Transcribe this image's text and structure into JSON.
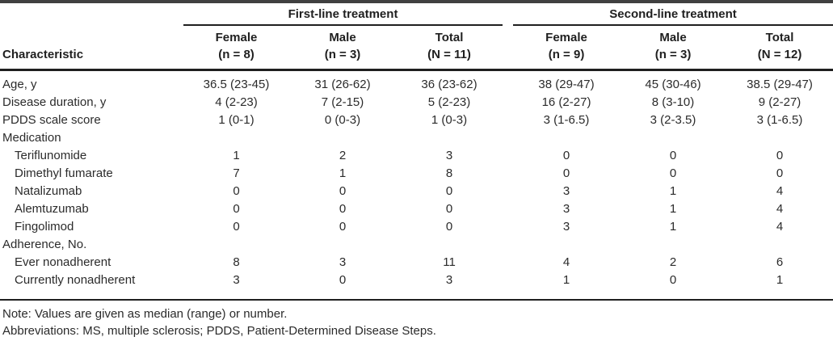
{
  "colors": {
    "background": "#ffffff",
    "text": "#2b2b2b",
    "rule": "#1f1f1f"
  },
  "table": {
    "characteristic_header": "Characteristic",
    "groups": [
      {
        "label": "First-line treatment"
      },
      {
        "label": "Second-line treatment"
      }
    ],
    "columns": [
      {
        "line1": "Female",
        "line2": "(n = 8)"
      },
      {
        "line1": "Male",
        "line2": "(n = 3)"
      },
      {
        "line1": "Total",
        "line2": "(N = 11)"
      },
      {
        "line1": "Female",
        "line2": "(n = 9)"
      },
      {
        "line1": "Male",
        "line2": "(n = 3)"
      },
      {
        "line1": "Total",
        "line2": "(N = 12)"
      }
    ],
    "rows": [
      {
        "label": "Age, y",
        "indent": false,
        "values": [
          "36.5 (23-45)",
          "31 (26-62)",
          "36 (23-62)",
          "38 (29-47)",
          "45 (30-46)",
          "38.5 (29-47)"
        ]
      },
      {
        "label": "Disease duration, y",
        "indent": false,
        "values": [
          "4 (2-23)",
          "7 (2-15)",
          "5 (2-23)",
          "16 (2-27)",
          "8 (3-10)",
          "9 (2-27)"
        ]
      },
      {
        "label": "PDDS scale score",
        "indent": false,
        "values": [
          "1 (0-1)",
          "0 (0-3)",
          "1 (0-3)",
          "3 (1-6.5)",
          "3 (2-3.5)",
          "3 (1-6.5)"
        ]
      },
      {
        "label": "Medication",
        "indent": false,
        "values": [
          "",
          "",
          "",
          "",
          "",
          ""
        ]
      },
      {
        "label": "Teriflunomide",
        "indent": true,
        "values": [
          "1",
          "2",
          "3",
          "0",
          "0",
          "0"
        ]
      },
      {
        "label": "Dimethyl fumarate",
        "indent": true,
        "values": [
          "7",
          "1",
          "8",
          "0",
          "0",
          "0"
        ]
      },
      {
        "label": "Natalizumab",
        "indent": true,
        "values": [
          "0",
          "0",
          "0",
          "3",
          "1",
          "4"
        ]
      },
      {
        "label": "Alemtuzumab",
        "indent": true,
        "values": [
          "0",
          "0",
          "0",
          "3",
          "1",
          "4"
        ]
      },
      {
        "label": "Fingolimod",
        "indent": true,
        "values": [
          "0",
          "0",
          "0",
          "3",
          "1",
          "4"
        ]
      },
      {
        "label": "Adherence, No.",
        "indent": false,
        "values": [
          "",
          "",
          "",
          "",
          "",
          ""
        ]
      },
      {
        "label": "Ever nonadherent",
        "indent": true,
        "values": [
          "8",
          "3",
          "11",
          "4",
          "2",
          "6"
        ]
      },
      {
        "label": "Currently nonadherent",
        "indent": true,
        "values": [
          "3",
          "0",
          "3",
          "1",
          "0",
          "1"
        ]
      }
    ],
    "notes": [
      "Note: Values are given as median (range) or number.",
      "Abbreviations: MS, multiple sclerosis; PDDS, Patient-Determined Disease Steps."
    ]
  }
}
